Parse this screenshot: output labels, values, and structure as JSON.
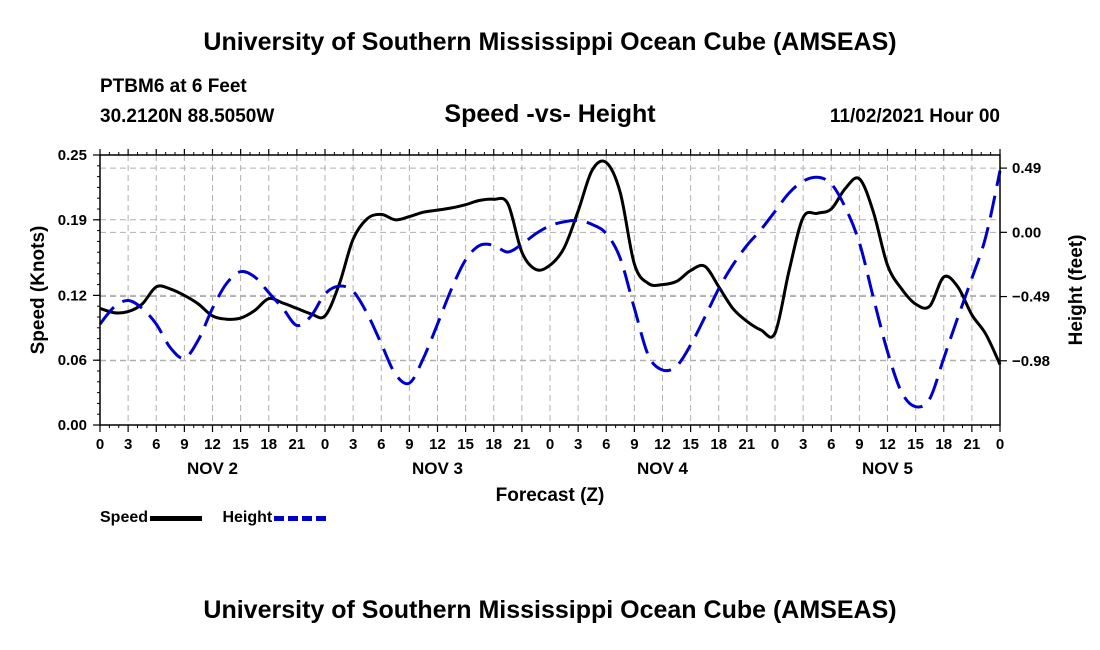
{
  "header": {
    "main_title": "University of Southern Mississippi Ocean Cube (AMSEAS)",
    "station": "PTBM6 at 6 Feet",
    "coords": "30.2120N  88.5050W",
    "chart_title": "Speed -vs- Height",
    "date": "11/02/2021 Hour 00"
  },
  "footer": {
    "title": "University of Southern Mississippi Ocean Cube (AMSEAS)"
  },
  "legend": {
    "speed_label": "Speed",
    "height_label": "Height"
  },
  "colors": {
    "speed": "#000000",
    "height": "#0000cc",
    "grid": "#b0b0b0"
  },
  "chart_data": {
    "type": "line",
    "title": "Speed -vs- Height",
    "xlabel": "Forecast (Z)",
    "ylabel": "Speed (Knots)",
    "y2label": "Height (feet)",
    "xlim": [
      0,
      96
    ],
    "ylim": [
      0,
      0.25
    ],
    "y2lim": [
      -1.47,
      0.59
    ],
    "x_tick_step_hours": 3,
    "x_tick_labels": [
      "0",
      "3",
      "6",
      "9",
      "12",
      "15",
      "18",
      "21",
      "0",
      "3",
      "6",
      "9",
      "12",
      "15",
      "18",
      "21",
      "0",
      "3",
      "6",
      "9",
      "12",
      "15",
      "18",
      "21",
      "0",
      "3",
      "6",
      "9",
      "12",
      "15",
      "18",
      "21",
      "0"
    ],
    "day_labels": [
      {
        "label": "NOV 2",
        "hour": 12
      },
      {
        "label": "NOV 3",
        "hour": 36
      },
      {
        "label": "NOV 4",
        "hour": 60
      },
      {
        "label": "NOV 5",
        "hour": 84
      }
    ],
    "y_ticks": [
      0.0,
      0.06,
      0.12,
      0.19,
      0.25
    ],
    "y_tick_labels": [
      "0.00",
      "0.06",
      "0.12",
      "0.19",
      "0.25"
    ],
    "y2_ticks": [
      -0.98,
      -0.49,
      0.0,
      0.49
    ],
    "y2_tick_labels": [
      "−0.98",
      "−0.49",
      "0.00",
      "0.49"
    ],
    "series": [
      {
        "name": "Speed",
        "axis": "left",
        "style": "solid",
        "points": [
          [
            0,
            0.108
          ],
          [
            1.5,
            0.104
          ],
          [
            3,
            0.105
          ],
          [
            4.5,
            0.112
          ],
          [
            6,
            0.128
          ],
          [
            7.5,
            0.126
          ],
          [
            9,
            0.12
          ],
          [
            10.5,
            0.112
          ],
          [
            12,
            0.101
          ],
          [
            13.5,
            0.098
          ],
          [
            15,
            0.099
          ],
          [
            16.5,
            0.106
          ],
          [
            18,
            0.117
          ],
          [
            19.5,
            0.113
          ],
          [
            21,
            0.108
          ],
          [
            22.5,
            0.103
          ],
          [
            24,
            0.101
          ],
          [
            25.5,
            0.13
          ],
          [
            27,
            0.172
          ],
          [
            28.5,
            0.191
          ],
          [
            30,
            0.195
          ],
          [
            31.5,
            0.19
          ],
          [
            33,
            0.193
          ],
          [
            34.5,
            0.197
          ],
          [
            36,
            0.199
          ],
          [
            37.5,
            0.201
          ],
          [
            39,
            0.204
          ],
          [
            40.5,
            0.208
          ],
          [
            42,
            0.209
          ],
          [
            43.5,
            0.205
          ],
          [
            45,
            0.16
          ],
          [
            46.5,
            0.144
          ],
          [
            48,
            0.148
          ],
          [
            49.5,
            0.164
          ],
          [
            51,
            0.198
          ],
          [
            52.5,
            0.236
          ],
          [
            54,
            0.243
          ],
          [
            55.5,
            0.215
          ],
          [
            57,
            0.149
          ],
          [
            58.5,
            0.131
          ],
          [
            60,
            0.13
          ],
          [
            61.5,
            0.133
          ],
          [
            63,
            0.143
          ],
          [
            64.5,
            0.147
          ],
          [
            66,
            0.128
          ],
          [
            67.5,
            0.108
          ],
          [
            69,
            0.096
          ],
          [
            70.5,
            0.088
          ],
          [
            72,
            0.085
          ],
          [
            73.5,
            0.143
          ],
          [
            75,
            0.192
          ],
          [
            76.5,
            0.196
          ],
          [
            78,
            0.2
          ],
          [
            79.5,
            0.219
          ],
          [
            81,
            0.228
          ],
          [
            82.5,
            0.197
          ],
          [
            84,
            0.148
          ],
          [
            85.5,
            0.126
          ],
          [
            87,
            0.112
          ],
          [
            88.5,
            0.11
          ],
          [
            90,
            0.137
          ],
          [
            91.5,
            0.128
          ],
          [
            93,
            0.102
          ],
          [
            94.5,
            0.084
          ],
          [
            96,
            0.056
          ]
        ]
      },
      {
        "name": "Height",
        "axis": "right",
        "style": "dashed",
        "points": [
          [
            0,
            -0.7
          ],
          [
            1.5,
            -0.57
          ],
          [
            3,
            -0.52
          ],
          [
            4.5,
            -0.58
          ],
          [
            6,
            -0.7
          ],
          [
            7.5,
            -0.88
          ],
          [
            9,
            -0.96
          ],
          [
            10.5,
            -0.82
          ],
          [
            12,
            -0.58
          ],
          [
            13.5,
            -0.39
          ],
          [
            15,
            -0.3
          ],
          [
            16.5,
            -0.34
          ],
          [
            18,
            -0.46
          ],
          [
            19.5,
            -0.58
          ],
          [
            21,
            -0.71
          ],
          [
            22.5,
            -0.64
          ],
          [
            24,
            -0.47
          ],
          [
            25.5,
            -0.41
          ],
          [
            27,
            -0.45
          ],
          [
            28.5,
            -0.62
          ],
          [
            30,
            -0.85
          ],
          [
            31.5,
            -1.08
          ],
          [
            33,
            -1.15
          ],
          [
            34.5,
            -0.96
          ],
          [
            36,
            -0.7
          ],
          [
            37.5,
            -0.43
          ],
          [
            39,
            -0.21
          ],
          [
            40.5,
            -0.1
          ],
          [
            42,
            -0.1
          ],
          [
            43.5,
            -0.15
          ],
          [
            45,
            -0.09
          ],
          [
            46.5,
            -0.01
          ],
          [
            48,
            0.05
          ],
          [
            49.5,
            0.08
          ],
          [
            51,
            0.09
          ],
          [
            52.5,
            0.06
          ],
          [
            54,
            -0.01
          ],
          [
            55.5,
            -0.2
          ],
          [
            57,
            -0.58
          ],
          [
            58.5,
            -0.94
          ],
          [
            60,
            -1.05
          ],
          [
            61.5,
            -1.02
          ],
          [
            63,
            -0.86
          ],
          [
            64.5,
            -0.65
          ],
          [
            66,
            -0.43
          ],
          [
            67.5,
            -0.25
          ],
          [
            69,
            -0.1
          ],
          [
            70.5,
            0.02
          ],
          [
            72,
            0.16
          ],
          [
            73.5,
            0.3
          ],
          [
            75,
            0.39
          ],
          [
            76.5,
            0.42
          ],
          [
            78,
            0.37
          ],
          [
            79.5,
            0.19
          ],
          [
            81,
            -0.08
          ],
          [
            82.5,
            -0.5
          ],
          [
            84,
            -0.91
          ],
          [
            85.5,
            -1.22
          ],
          [
            87,
            -1.33
          ],
          [
            88.5,
            -1.27
          ],
          [
            90,
            -0.96
          ],
          [
            91.5,
            -0.65
          ],
          [
            93,
            -0.35
          ],
          [
            94.5,
            -0.03
          ],
          [
            96,
            0.47
          ]
        ]
      }
    ]
  }
}
